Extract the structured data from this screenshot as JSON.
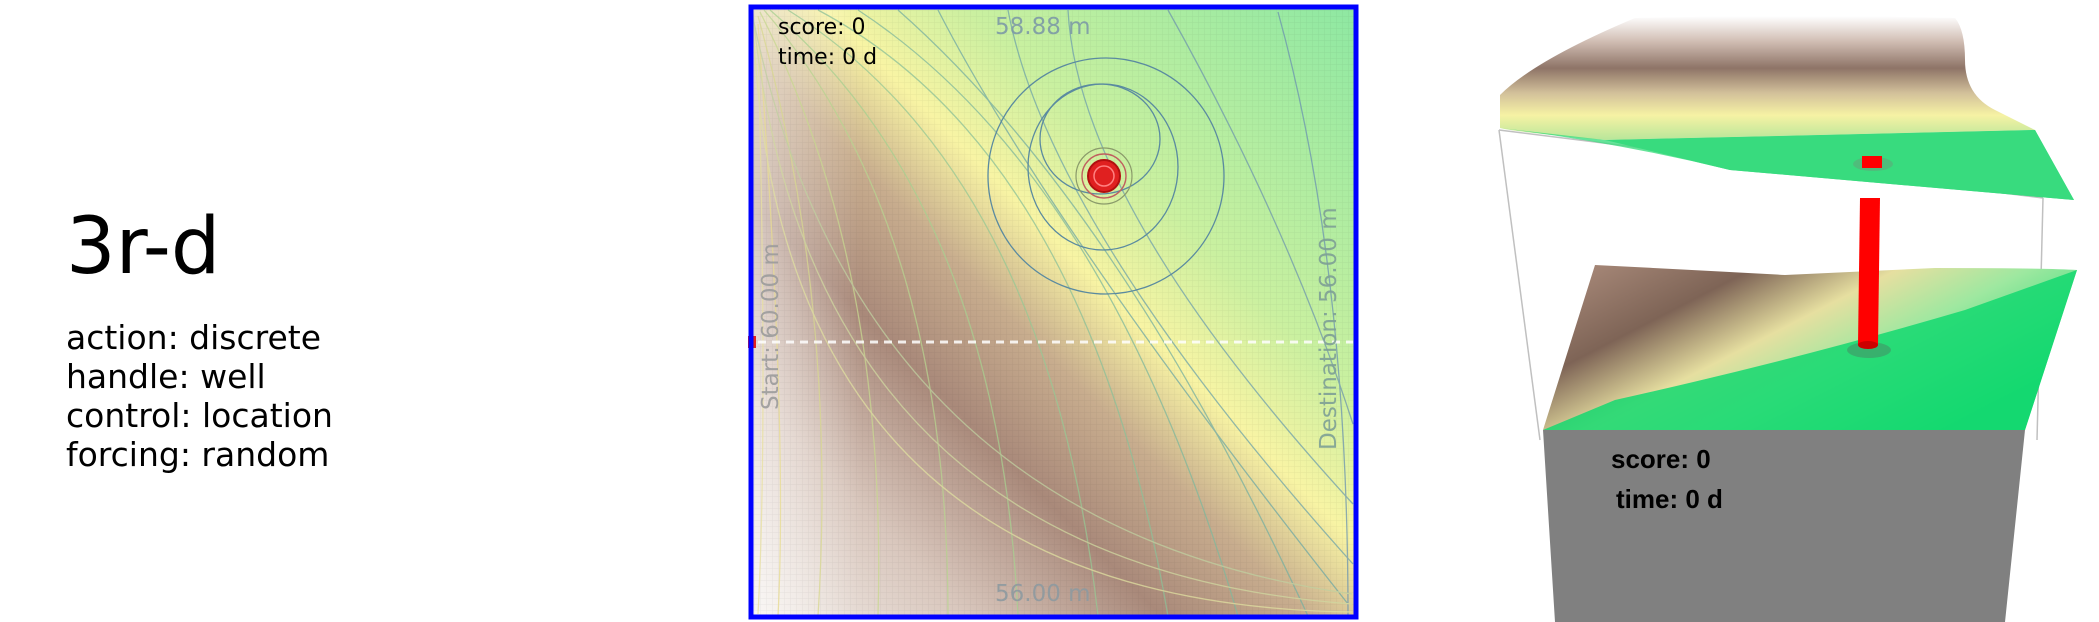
{
  "info": {
    "title": "3r-d",
    "action": "action: discrete",
    "handle": "handle: well",
    "control": "control: location",
    "forcing": "forcing: random"
  },
  "top_view": {
    "score": "score: 0",
    "time": "time: 0 d",
    "contour_top": "58.88 m",
    "contour_bottom": "56.00 m",
    "start_label": "Start: 60.00 m",
    "destination_label": "Destination: 56.00 m",
    "border_color": "#0000ff",
    "well_color": "#e02020"
  },
  "perspective_view": {
    "score": "score: 0",
    "time": "time: 0 d",
    "well_color": "#ff0000",
    "base_color": "#808080"
  }
}
